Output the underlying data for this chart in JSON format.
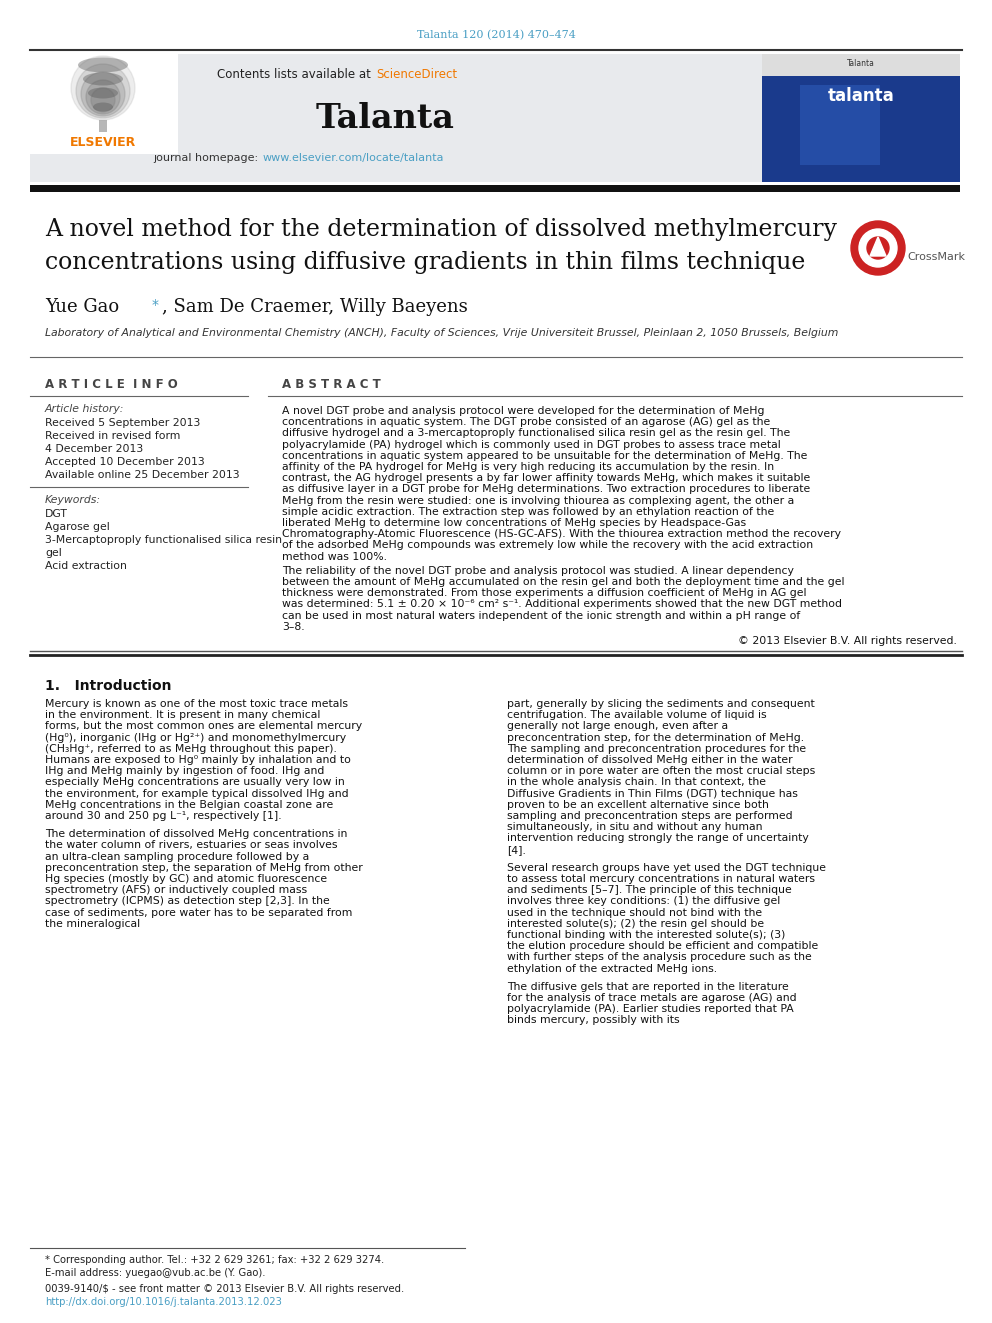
{
  "journal_ref": "Talanta 120 (2014) 470–474",
  "journal_ref_color": "#4a9fc4",
  "header_bg": "#e8eaed",
  "contents_text": "Contents lists available at ",
  "sciencedirect_text": "ScienceDirect",
  "sciencedirect_color": "#f07800",
  "journal_name": "Talanta",
  "homepage_text": "journal homepage: ",
  "homepage_url": "www.elsevier.com/locate/talanta",
  "homepage_url_color": "#4a9fc4",
  "title": "A novel method for the determination of dissolved methylmercury\nconcentrations using diffusive gradients in thin films technique",
  "affiliation": "Laboratory of Analytical and Environmental Chemistry (ANCH), Faculty of Sciences, Vrije Universiteit Brussel, Pleinlaan 2, 1050 Brussels, Belgium",
  "article_info_header": "A R T I C L E  I N F O",
  "abstract_header": "A B S T R A C T",
  "article_history_label": "Article history:",
  "history_lines": [
    "Received 5 September 2013",
    "Received in revised form",
    "4 December 2013",
    "Accepted 10 December 2013",
    "Available online 25 December 2013"
  ],
  "keywords_label": "Keywords:",
  "keywords": [
    "DGT",
    "Agarose gel",
    "3-Mercaptoproply functionalised silica resin\ngel",
    "Acid extraction"
  ],
  "abstract_paragraph1": "A novel DGT probe and analysis protocol were developed for the determination of MeHg concentrations in aquatic system. The DGT probe consisted of an agarose (AG) gel as the diffusive hydrogel and a 3-mercaptoproply functionalised silica resin gel as the resin gel. The polyacrylamide (PA) hydrogel which is commonly used in DGT probes to assess trace metal concentrations in aquatic system appeared to be unsuitable for the determination of MeHg. The affinity of the PA hydrogel for MeHg is very high reducing its accumulation by the resin. In contrast, the AG hydrogel presents a by far lower affinity towards MeHg, which makes it suitable as diffusive layer in a DGT probe for MeHg determinations. Two extraction procedures to liberate MeHg from the resin were studied: one is involving thiourea as complexing agent, the other a simple acidic extraction. The extraction step was followed by an ethylation reaction of the liberated MeHg to determine low concentrations of MeHg species by Headspace-Gas Chromatography-Atomic Fluorescence (HS-GC-AFS). With the thiourea extraction method the recovery of the adsorbed MeHg compounds was extremely low while the recovery with the acid extraction method was 100%.",
  "abstract_paragraph2": "    The reliability of the novel DGT probe and analysis protocol was studied. A linear dependency between the amount of MeHg accumulated on the resin gel and both the deployment time and the gel thickness were demonstrated. From those experiments a diffusion coefficient of MeHg in AG gel was determined: 5.1 ± 0.20 × 10⁻⁶ cm² s⁻¹. Additional experiments showed that the new DGT method can be used in most natural waters independent of the ionic strength and within a pH range of 3–8.",
  "copyright": "© 2013 Elsevier B.V. All rights reserved.",
  "section1_header": "1.   Introduction",
  "intro_col1_p1": "Mercury is known as one of the most toxic trace metals in the environment. It is present in many chemical forms, but the most common ones are elemental mercury (Hg⁰), inorganic (IHg or Hg²⁺) and monomethylmercury (CH₃Hg⁺, referred to as MeHg throughout this paper). Humans are exposed to Hg⁰ mainly by inhalation and to IHg and MeHg mainly by ingestion of food. IHg and especially MeHg concentrations are usually very low in the environment, for example typical dissolved IHg and MeHg concentrations in the Belgian coastal zone are around 30 and 250 pg L⁻¹, respectively [1].",
  "intro_col1_p2": "The determination of dissolved MeHg concentrations in the water column of rivers, estuaries or seas involves an ultra-clean sampling procedure followed by a preconcentration step, the separation of MeHg from other Hg species (mostly by GC) and atomic fluorescence spectrometry (AFS) or inductively coupled mass spectrometry (ICPMS) as detection step [2,3]. In the case of sediments, pore water has to be separated from the mineralogical",
  "intro_col2_p1": "part, generally by slicing the sediments and consequent centrifugation. The available volume of liquid is generally not large enough, even after a preconcentration step, for the determination of MeHg. The sampling and preconcentration procedures for the determination of dissolved MeHg either in the water column or in pore water are often the most crucial steps in the whole analysis chain. In that context, the Diffusive Gradients in Thin Films (DGT) technique has proven to be an excellent alternative since both sampling and preconcentration steps are performed simultaneously, in situ and without any human intervention reducing strongly the range of uncertainty [4].",
  "intro_col2_p2": "Several research groups have yet used the DGT technique to assess total mercury concentrations in natural waters and sediments [5–7]. The principle of this technique involves three key conditions: (1) the diffusive gel used in the technique should not bind with the interested solute(s); (2) the resin gel should be functional binding with the interested solute(s); (3) the elution procedure should be efficient and compatible with further steps of the analysis procedure such as the ethylation of the extracted MeHg ions.",
  "intro_col2_p3": "The diffusive gels that are reported in the literature for the analysis of trace metals are agarose (AG) and polyacrylamide (PA). Earlier studies reported that PA binds mercury, possibly with its",
  "footer_text1": "* Corresponding author. Tel.: +32 2 629 3261; fax: +32 2 629 3274.",
  "footer_text2": "E-mail address: yuegao@vub.ac.be (Y. Gao).",
  "footer_text3": "0039-9140/$ - see front matter © 2013 Elsevier B.V. All rights reserved.",
  "footer_url": "http://dx.doi.org/10.1016/j.talanta.2013.12.023",
  "footer_url_color": "#4a9fc4",
  "bg_color": "#ffffff",
  "text_color": "#000000",
  "star_color": "#4a9fc4"
}
